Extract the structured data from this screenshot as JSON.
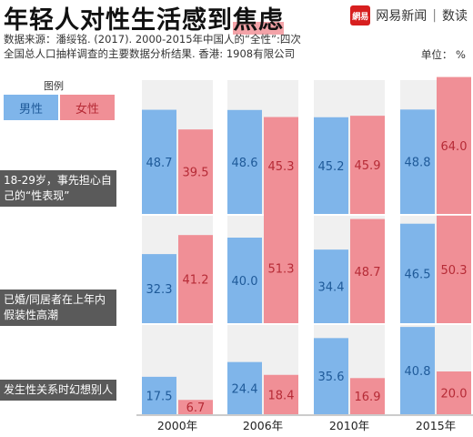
{
  "header": {
    "title_part1": "年轻人对性生活感到",
    "title_part2": "焦虑",
    "brand_logo_text": "網易",
    "brand_name": "网易新闻",
    "brand_separator": "|",
    "brand_sub": "数读"
  },
  "source": {
    "line1": "数据来源：潘绥铭. (2017). 2000-2015年中国人的“全性”:四次",
    "line2": "全国总人口抽样调查的主要数据分析结果. 香港: 1908有限公司"
  },
  "unit": "单位： %",
  "legend": {
    "title": "图例",
    "male": "男性",
    "female": "女性"
  },
  "colors": {
    "male": "#7fb5ea",
    "female": "#f08f96",
    "panel_bg": "#f0f0f0",
    "label_bg": "#5a5a5a"
  },
  "chart_data": {
    "type": "bar",
    "categories": [
      "2000年",
      "2006年",
      "2010年",
      "2015年"
    ],
    "panels": [
      {
        "label": "18-29岁，事先担心自己的“性表现”",
        "series": [
          {
            "name": "男性",
            "values": [
              48.7,
              48.6,
              45.2,
              48.8
            ]
          },
          {
            "name": "女性",
            "values": [
              39.5,
              45.3,
              45.9,
              64.0
            ]
          }
        ]
      },
      {
        "label": "已婚/同居者在上年内假装性高潮",
        "series": [
          {
            "name": "男性",
            "values": [
              32.3,
              40.0,
              34.4,
              46.5
            ]
          },
          {
            "name": "女性",
            "values": [
              41.2,
              51.3,
              48.7,
              50.3
            ]
          }
        ]
      },
      {
        "label": "发生性关系时幻想别人",
        "series": [
          {
            "name": "男性",
            "values": [
              17.5,
              24.4,
              35.6,
              40.8
            ]
          },
          {
            "name": "女性",
            "values": [
              6.7,
              18.4,
              16.9,
              20.0
            ]
          }
        ]
      }
    ],
    "ylim": [
      0,
      70
    ],
    "legend_position": "top-left",
    "grid": false
  }
}
